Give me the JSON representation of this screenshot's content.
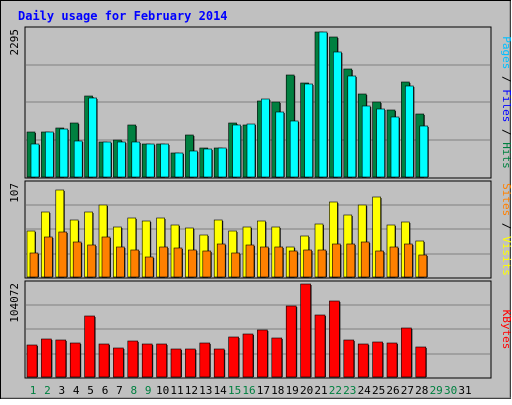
{
  "chart_data": {
    "type": "bar",
    "title": "Daily usage for February 2014",
    "x": [
      "1",
      "2",
      "3",
      "4",
      "5",
      "6",
      "7",
      "8",
      "9",
      "10",
      "11",
      "12",
      "13",
      "14",
      "15",
      "16",
      "17",
      "18",
      "19",
      "20",
      "21",
      "22",
      "23",
      "24",
      "25",
      "26",
      "27",
      "28",
      "29",
      "30",
      "31"
    ],
    "weekend_days": [
      "1",
      "2",
      "8",
      "9",
      "15",
      "16",
      "22",
      "23",
      "29",
      "30"
    ],
    "panels": [
      {
        "axis_max_label": "2295",
        "ylim": [
          0,
          2295
        ],
        "series": [
          {
            "name": "Hits",
            "color": "#008040",
            "values": [
              700,
              710,
              760,
              840,
              1260,
              550,
              580,
              810,
              510,
              520,
              380,
              660,
              450,
              460,
              850,
              810,
              1190,
              1170,
              1600,
              1460,
              2270,
              2180,
              1680,
              1300,
              1170,
              1040,
              1480,
              990
            ]
          },
          {
            "name": "Files",
            "color": "#0000ff",
            "values": [
              0,
              0,
              0,
              0,
              0,
              0,
              0,
              0,
              0,
              0,
              0,
              0,
              0,
              0,
              0,
              0,
              0,
              0,
              0,
              0,
              0,
              0,
              0,
              0,
              0,
              0,
              0,
              0
            ]
          },
          {
            "name": "Pages",
            "color": "#00ffff",
            "values": [
              510,
              710,
              750,
              560,
              1230,
              550,
              550,
              550,
              510,
              520,
              380,
              400,
              430,
              460,
              810,
              820,
              1210,
              1020,
              870,
              1450,
              2270,
              1950,
              1580,
              1110,
              1060,
              940,
              1420,
              790
            ]
          }
        ],
        "label_parts": [
          {
            "text": "Pages",
            "color": "#00bfff"
          },
          {
            "text": " / ",
            "color": "#000000"
          },
          {
            "text": "Files",
            "color": "#0000ff"
          },
          {
            "text": " / ",
            "color": "#000000"
          },
          {
            "text": "Hits",
            "color": "#008040"
          }
        ]
      },
      {
        "axis_max_label": "107",
        "ylim": [
          0,
          107
        ],
        "series": [
          {
            "name": "Visits",
            "color": "#ffff00",
            "values": [
              53,
              75,
              100,
              66,
              75,
              83,
              57,
              68,
              65,
              68,
              60,
              56,
              48,
              66,
              53,
              58,
              64,
              58,
              34,
              47,
              61,
              86,
              71,
              83,
              92,
              60,
              63,
              41
            ]
          },
          {
            "name": "Sites",
            "color": "#ff8000",
            "values": [
              28,
              46,
              52,
              40,
              37,
              46,
              34,
              31,
              23,
              34,
              33,
              31,
              30,
              38,
              28,
              37,
              34,
              34,
              30,
              31,
              31,
              38,
              38,
              40,
              30,
              34,
              38,
              25
            ]
          }
        ],
        "label_parts": [
          {
            "text": "Sites",
            "color": "#ff8000"
          },
          {
            "text": " / ",
            "color": "#000000"
          },
          {
            "text": "Visits",
            "color": "#ffff00"
          }
        ]
      },
      {
        "axis_max_label": "104072",
        "ylim": [
          0,
          104072
        ],
        "series": [
          {
            "name": "KBytes",
            "color": "#ff0000",
            "values": [
              35600,
              42700,
              41700,
              38600,
              68100,
              36400,
              32200,
              40200,
              36600,
              36400,
              31300,
              31200,
              38500,
              31600,
              45200,
              48200,
              52900,
              44000,
              79200,
              104000,
              69000,
              84900,
              41100,
              36800,
              38800,
              38600,
              54600,
              33800
            ]
          }
        ],
        "label_parts": [
          {
            "text": "KBytes",
            "color": "#ff0000"
          }
        ]
      }
    ]
  }
}
